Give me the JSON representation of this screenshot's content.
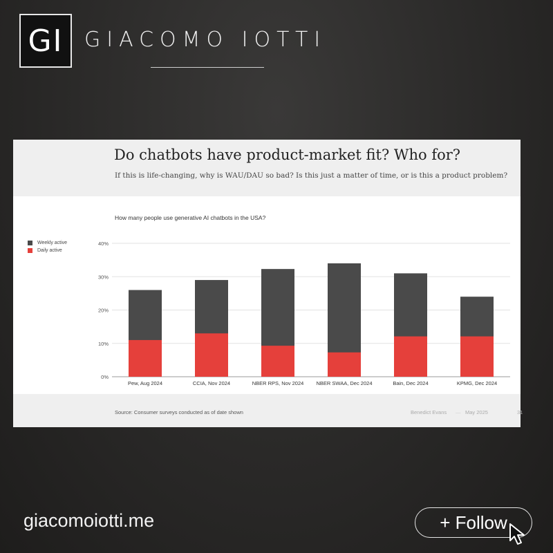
{
  "header": {
    "logo_text": "GI",
    "brand_name": "GIACOMO IOTTI"
  },
  "slide": {
    "title": "Do chatbots have product-market fit? Who for?",
    "subtitle": "If this is life-changing, why is WAU/DAU so bad? Is this just a matter of time, or is this a product problem?",
    "chart_question": "How many people use generative AI chatbots in the USA?",
    "source": "Source: Consumer surveys conducted as of date shown",
    "author": "Benedict Evans",
    "date": "May 2025",
    "page": "31",
    "footer_separator": "—"
  },
  "chart_data": {
    "type": "bar",
    "title": "How many people use generative AI chatbots in the USA?",
    "categories": [
      "Pew, Aug 2024",
      "CCIA, Nov 2024",
      "NBER RPS, Nov 2024",
      "NBER SWAA, Dec 2024",
      "Bain, Dec 2024",
      "KPMG, Dec 2024"
    ],
    "series": [
      {
        "name": "Weekly active",
        "values": [
          26,
          29,
          32.3,
          34,
          31,
          24
        ],
        "color": "#4a4a4a"
      },
      {
        "name": "Daily active",
        "values": [
          11,
          13,
          9.3,
          7.3,
          12.1,
          12.1
        ],
        "color": "#e5403b"
      }
    ],
    "overlay": true,
    "ylim": [
      0,
      40
    ],
    "yticks": [
      "0%",
      "10%",
      "20%",
      "30%",
      "40%"
    ],
    "grid": true,
    "legend_position": "left"
  },
  "footer": {
    "website": "giacomoiotti.me",
    "follow_label": "+ Follow"
  }
}
